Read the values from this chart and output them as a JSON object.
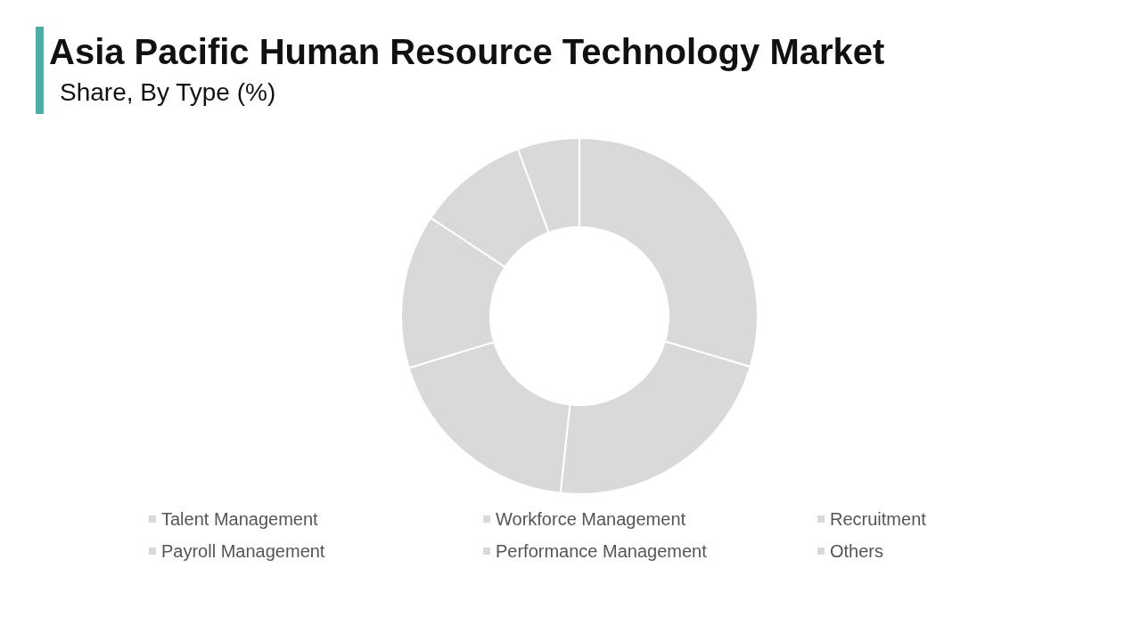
{
  "chart_data": {
    "type": "donut",
    "title": "Asia Pacific Human Resource Technology Market",
    "subtitle": "Share, By Type (%)",
    "categories": [
      "Talent Management",
      "Workforce Management",
      "Recruitment",
      "Payroll Management",
      "Performance Management",
      "Others"
    ],
    "values": [
      29.6,
      22.1,
      18.6,
      14.0,
      10.1,
      5.6
    ],
    "colors": [
      "#d9d9d9",
      "#d9d9d9",
      "#d9d9d9",
      "#d9d9d9",
      "#d9d9d9",
      "#d9d9d9"
    ],
    "legend": "bottom"
  }
}
